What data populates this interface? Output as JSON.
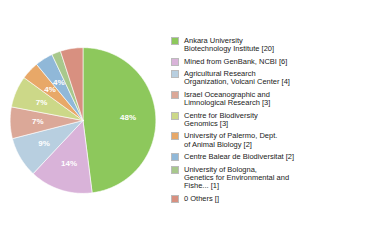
{
  "chart_data": {
    "type": "pie",
    "categories": [
      "Ankara University\nBiotechnology Institute [20]",
      "Mined from GenBank, NCBI [6]",
      "Agricultural Research\nOrganization, Volcani Center [4]",
      "Israel Oceanographic and\nLimnological Research [3]",
      "Centre for Biodiversity\nGenomics [3]",
      "University of Palermo, Dept.\nof Animal Biology [2]",
      "Centre Balear de Biodiversitat [2]",
      "University of Bologna,\nGenetics for Environmental and\nFishe... [1]",
      "0 Others []"
    ],
    "values": [
      48,
      14,
      9,
      7,
      7,
      4,
      4,
      2,
      5
    ],
    "value_labels": [
      "48%",
      "14%",
      "9%",
      "7%",
      "7%",
      "4%",
      "4%",
      null,
      null
    ],
    "colors": [
      "#8dc85c",
      "#d9b3d9",
      "#b8cfe0",
      "#dba898",
      "#ccd888",
      "#e8a868",
      "#90b8d8",
      "#a8c88c",
      "#d89080"
    ],
    "data_labels": true,
    "legend": "right"
  }
}
